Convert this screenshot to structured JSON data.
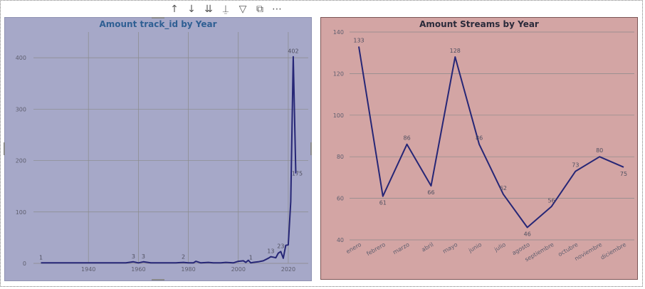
{
  "toolbar": {
    "icons": [
      "arrow-up-icon",
      "arrow-down-icon",
      "double-arrow-down-icon",
      "expand-hierarchy-icon",
      "filter-icon",
      "focus-mode-icon",
      "more-options-icon"
    ],
    "glyphs": [
      "↑",
      "↓",
      "⇊",
      "⍊",
      "▽",
      "⧉",
      "⋯"
    ]
  },
  "colors": {
    "left_bg": "#a6a8c8",
    "right_bg": "#d3a5a4",
    "line": "#262676",
    "grid": "#8a8a8a"
  },
  "chart_data": [
    {
      "type": "line",
      "title": "Amount track_id by Year",
      "x": [
        1921,
        1925,
        1930,
        1935,
        1940,
        1945,
        1950,
        1955,
        1958,
        1960,
        1962,
        1965,
        1970,
        1975,
        1978,
        1980,
        1982,
        1983,
        1985,
        1988,
        1990,
        1993,
        1995,
        1998,
        2000,
        2002,
        2003,
        2004,
        2005,
        2006,
        2008,
        2010,
        2012,
        2013,
        2014,
        2015,
        2016,
        2017,
        2018,
        2019,
        2020,
        2021,
        2022,
        2023
      ],
      "y": [
        1,
        1,
        1,
        1,
        1,
        1,
        1,
        1,
        3,
        1,
        3,
        1,
        1,
        1,
        2,
        1,
        1,
        4,
        1,
        2,
        1,
        1,
        2,
        1,
        4,
        5,
        2,
        6,
        1,
        2,
        3,
        5,
        10,
        13,
        12,
        11,
        20,
        23,
        10,
        35,
        36,
        120,
        402,
        175
      ],
      "point_labels": [
        {
          "x": 1921,
          "y": 1,
          "text": "1"
        },
        {
          "x": 1958,
          "y": 3,
          "text": "3"
        },
        {
          "x": 1962,
          "y": 3,
          "text": "3"
        },
        {
          "x": 1978,
          "y": 2,
          "text": "2"
        },
        {
          "x": 2005,
          "y": 1,
          "text": "1"
        },
        {
          "x": 2013,
          "y": 13,
          "text": "13"
        },
        {
          "x": 2017,
          "y": 23,
          "text": "23"
        },
        {
          "x": 2022,
          "y": 402,
          "text": "402"
        },
        {
          "x": 2023,
          "y": 175,
          "text": "175"
        }
      ],
      "x_ticks": [
        1940,
        1960,
        1980,
        2000,
        2020
      ],
      "y_ticks": [
        0,
        100,
        200,
        300,
        400
      ],
      "xlim": [
        1918,
        2028
      ],
      "ylim": [
        0,
        450
      ],
      "grid": true
    },
    {
      "type": "line",
      "title": "Amount Streams by Year",
      "categories": [
        "enero",
        "febrero",
        "marzo",
        "abril",
        "mayo",
        "junio",
        "julio",
        "agosto",
        "septiembre",
        "octubre",
        "noviembre",
        "diciembre"
      ],
      "values": [
        133,
        61,
        86,
        66,
        128,
        86,
        62,
        46,
        56,
        73,
        80,
        75
      ],
      "data_labels": [
        "133",
        "61",
        "86",
        "66",
        "128",
        "86",
        "62",
        "46",
        "56",
        "73",
        "80",
        "75"
      ],
      "y_ticks": [
        40,
        60,
        80,
        100,
        120,
        140
      ],
      "ylim": [
        40,
        140
      ],
      "grid": true
    }
  ]
}
